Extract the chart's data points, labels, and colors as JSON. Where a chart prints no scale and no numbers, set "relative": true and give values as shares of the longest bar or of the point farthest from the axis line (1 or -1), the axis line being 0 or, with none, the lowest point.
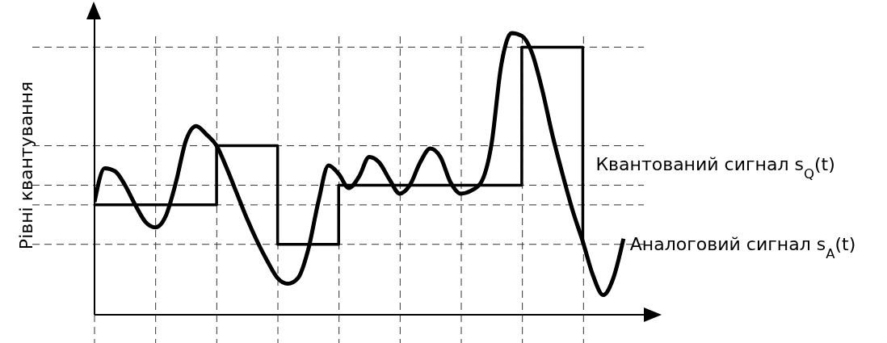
{
  "chart_data": {
    "type": "line",
    "relative": true,
    "ylabel": "Рівні квантування",
    "categories": [
      null,
      null,
      null,
      null,
      null,
      null,
      null,
      null,
      null,
      null,
      null,
      null,
      null,
      null,
      null,
      null,
      null,
      null,
      null,
      null,
      null,
      null,
      null,
      null,
      null,
      null,
      null,
      null,
      null,
      null,
      null,
      null,
      null,
      null,
      null,
      null,
      null,
      null,
      null,
      null,
      null,
      null,
      null,
      null,
      null,
      null,
      null,
      null,
      null,
      null,
      null,
      null,
      null
    ],
    "series": [
      {
        "name": "Квантований сигнал s$_{Q}$(t)",
        "type": "step",
        "color": "#000000",
        "values": [
          0.39,
          0.39,
          0.39,
          0.39,
          0.39,
          0.39,
          0.39,
          0.39,
          0.39,
          0.39,
          0.39,
          0.39,
          0.6,
          0.6,
          0.6,
          0.6,
          0.6,
          0.6,
          0.25,
          0.25,
          0.25,
          0.25,
          0.25,
          0.25,
          0.46,
          0.46,
          0.46,
          0.46,
          0.46,
          0.46,
          0.46,
          0.46,
          0.46,
          0.46,
          0.46,
          0.46,
          0.46,
          0.46,
          0.46,
          0.46,
          0.46,
          0.46,
          0.95,
          0.95,
          0.95,
          0.95,
          0.95,
          0.95,
          0.25,
          null,
          null,
          null,
          null
        ]
      },
      {
        "name": "Аналоговий сигнал s$_{A}$(t)",
        "color": "#000000",
        "values": [
          0.4,
          0.52,
          0.51,
          0.46,
          0.39,
          0.33,
          0.31,
          0.35,
          0.47,
          0.62,
          0.67,
          0.64,
          0.6,
          0.52,
          0.43,
          0.34,
          0.26,
          0.19,
          0.13,
          0.11,
          0.13,
          0.23,
          0.4,
          0.53,
          0.5,
          0.45,
          0.49,
          0.56,
          0.54,
          0.48,
          0.43,
          0.46,
          0.54,
          0.59,
          0.56,
          0.47,
          0.43,
          0.44,
          0.47,
          0.6,
          0.89,
          1,
          0.99,
          0.93,
          0.8,
          0.64,
          0.5,
          0.37,
          0.26,
          0.14,
          0.07,
          0.13,
          0.27
        ]
      }
    ],
    "grid": true,
    "marker": "none",
    "line_style": "solid"
  }
}
